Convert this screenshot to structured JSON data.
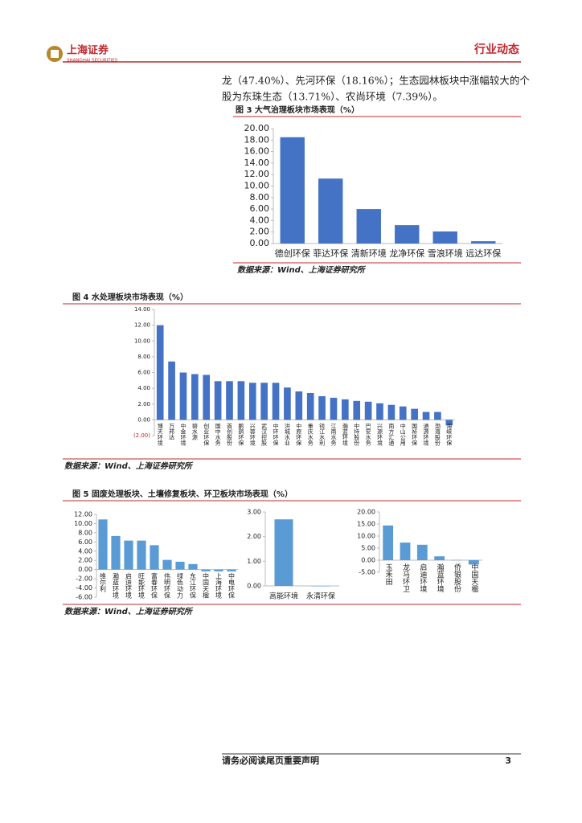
{
  "header": {
    "logo_text": "上海证券",
    "logo_sub": "SHANGHAI SECURITIES",
    "section": "行业动态"
  },
  "body": {
    "lines": [
      "龙（47.40%）、先河环保（18.16%）；生态园林板块中涨幅较大的个",
      "股为东珠生态（13.71%）、农尚环境（7.39%）。"
    ]
  },
  "captions": [
    "图 3 大气治理板块市场表现（%）",
    "图 4  水处理板块市场表现（%）",
    "图 5 固废处理板块、土壤修复板块、环卫板块市场表现（%）"
  ],
  "sources": [
    "数据来源：Wind、上海证券研究所",
    "数据来源：Wind、上海证券研究所",
    "数据来源：Wind、上海证券研究所"
  ],
  "footer": {
    "notice": "请务必阅读尾页重要声明",
    "page": "3"
  },
  "chart_data": [
    {
      "type": "bar",
      "color": "#4472c4",
      "categories": [
        "德创环保",
        "菲达环保",
        "清新环境",
        "龙净环保",
        "雪浪环境",
        "远达环保"
      ],
      "values": [
        18.5,
        11.3,
        6.0,
        3.2,
        2.1,
        0.4
      ],
      "ylim": [
        0,
        20
      ],
      "yticks": [
        {
          "value": 0,
          "label": "0.00"
        },
        {
          "value": 2,
          "label": "2.00"
        },
        {
          "value": 4,
          "label": "4.00"
        },
        {
          "value": 6,
          "label": "6.00"
        },
        {
          "value": 8,
          "label": "8.00"
        },
        {
          "value": 10,
          "label": "10.00"
        },
        {
          "value": 12,
          "label": "12.00"
        },
        {
          "value": 14,
          "label": "14.00"
        },
        {
          "value": 16,
          "label": "16.00"
        },
        {
          "value": 18,
          "label": "18.00"
        },
        {
          "value": 20,
          "label": "20.00"
        }
      ]
    },
    {
      "type": "bar",
      "color": "#4472c4",
      "categories": [
        "博天环境",
        "万邦达",
        "中金环境",
        "碧水源",
        "创业环保",
        "国中水务",
        "首创股份",
        "鹏鹞环保",
        "兴蓉环境",
        "武汉控股",
        "中环环保",
        "洪城水业",
        "中原环保",
        "重庆水务",
        "钱江水利",
        "江南水务",
        "瀚蓝环境",
        "中持股份",
        "巴安水务",
        "兴源环境",
        "南方汇通",
        "中山公用",
        "国祯环保",
        "通源环境",
        "渤海股份",
        "海峡环保"
      ],
      "values": [
        12.0,
        7.4,
        6.0,
        5.8,
        5.7,
        4.9,
        4.9,
        4.9,
        4.7,
        4.7,
        4.7,
        4.1,
        3.6,
        3.4,
        3.0,
        2.8,
        2.6,
        2.4,
        2.3,
        2.1,
        1.9,
        1.7,
        1.4,
        1.0,
        1.0,
        -0.7
      ],
      "ylim": [
        -2,
        14
      ],
      "yticks": [
        {
          "value": -2,
          "label": "(2.00)"
        },
        {
          "value": 0,
          "label": "0.00"
        },
        {
          "value": 2,
          "label": "2.00"
        },
        {
          "value": 4,
          "label": "4.00"
        },
        {
          "value": 6,
          "label": "6.00"
        },
        {
          "value": 8,
          "label": "8.00"
        },
        {
          "value": 10,
          "label": "10.00"
        },
        {
          "value": 12,
          "label": "12.00"
        },
        {
          "value": 14,
          "label": "14.00"
        }
      ]
    },
    {
      "type": "bar",
      "color": "#5b9bd5",
      "categories": [
        "维尔利",
        "瀚蓝环境",
        "启迪环境",
        "旺能环境",
        "富春环保",
        "伟明环保",
        "绿色动力",
        "东江环保",
        "中国天楹",
        "上海环境",
        "中电环保"
      ],
      "values": [
        10.9,
        7.3,
        6.3,
        6.3,
        5.3,
        2.1,
        1.7,
        1.2,
        -0.4,
        -0.4,
        -0.4
      ],
      "ylim": [
        -6,
        12
      ],
      "yticks": [
        {
          "value": -6,
          "label": "-6.00"
        },
        {
          "value": -4,
          "label": "-4.00"
        },
        {
          "value": -2,
          "label": "-2.00"
        },
        {
          "value": 0,
          "label": "0.00"
        },
        {
          "value": 2,
          "label": "2.00"
        },
        {
          "value": 4,
          "label": "4.00"
        },
        {
          "value": 6,
          "label": "6.00"
        },
        {
          "value": 8,
          "label": "8.00"
        },
        {
          "value": 10,
          "label": "10.00"
        },
        {
          "value": 12,
          "label": "12.00"
        }
      ]
    },
    {
      "type": "bar",
      "color": "#5b9bd5",
      "categories": [
        "高能环境",
        "永清环保"
      ],
      "values": [
        2.7,
        0
      ],
      "ylim": [
        0,
        3
      ],
      "yticks": [
        {
          "value": 0,
          "label": "0.00"
        },
        {
          "value": 1,
          "label": "1.00"
        },
        {
          "value": 2,
          "label": "2.00"
        },
        {
          "value": 3,
          "label": "3.00"
        }
      ]
    },
    {
      "type": "bar",
      "color": "#5b9bd5",
      "categories": [
        "玉禾田",
        "龙马环卫",
        "启迪环境",
        "瀚蓝环境",
        "侨银股份",
        "中国天楹"
      ],
      "values": [
        14.4,
        7.3,
        6.4,
        1.6,
        0.1,
        -1.8
      ],
      "ylim": [
        -5,
        20
      ],
      "yticks": [
        {
          "value": -5,
          "label": "-5.00"
        },
        {
          "value": 0,
          "label": "0.00"
        },
        {
          "value": 5,
          "label": "5.00"
        },
        {
          "value": 10,
          "label": "10.00"
        },
        {
          "value": 15,
          "label": "15.00"
        },
        {
          "value": 20,
          "label": "20.00"
        }
      ]
    }
  ]
}
